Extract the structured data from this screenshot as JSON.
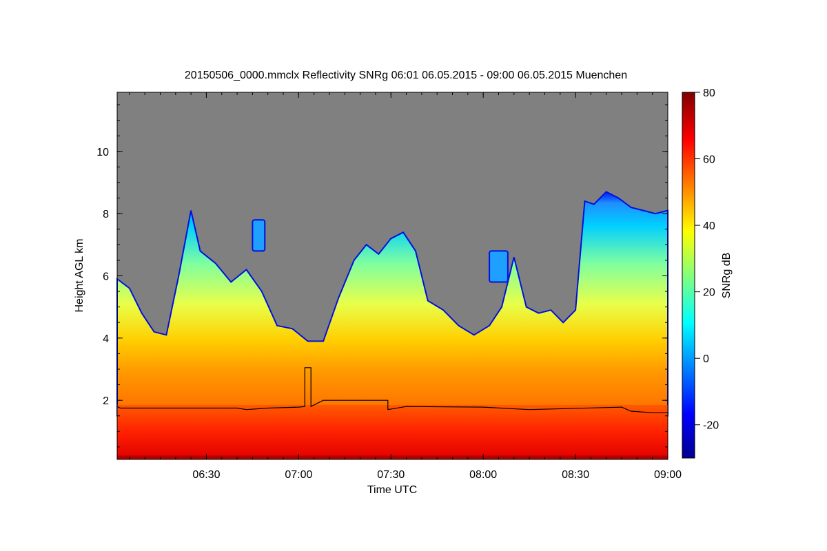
{
  "chart_data": {
    "type": "heatmap",
    "title": "20150506_0000.mmclx Reflectivity SNRg   06:01 06.05.2015 - 09:00 06.05.2015 Muenchen",
    "xlabel": "Time UTC",
    "ylabel": "Height AGL km",
    "colorbar_label": "SNRg dB",
    "x_unit": "UTC",
    "xlim": [
      "06:01",
      "09:00"
    ],
    "ylim": [
      0.1,
      11.9
    ],
    "x_ticks": [
      "06:30",
      "07:00",
      "07:30",
      "08:00",
      "08:30",
      "09:00"
    ],
    "y_ticks": [
      2,
      4,
      6,
      8,
      10
    ],
    "colorbar_range": [
      -30,
      80
    ],
    "colorbar_ticks": [
      -20,
      0,
      20,
      40,
      60,
      80
    ],
    "colormap": "jet",
    "no_data_color": "#808080",
    "cloud_top_km": [
      [
        "06:01",
        5.9
      ],
      [
        "06:05",
        5.6
      ],
      [
        "06:09",
        4.8
      ],
      [
        "06:13",
        4.2
      ],
      [
        "06:17",
        4.1
      ],
      [
        "06:21",
        6.0
      ],
      [
        "06:25",
        8.1
      ],
      [
        "06:28",
        6.8
      ],
      [
        "06:33",
        6.4
      ],
      [
        "06:38",
        5.8
      ],
      [
        "06:43",
        6.2
      ],
      [
        "06:48",
        5.5
      ],
      [
        "06:53",
        4.4
      ],
      [
        "06:58",
        4.3
      ],
      [
        "07:03",
        3.9
      ],
      [
        "07:08",
        3.9
      ],
      [
        "07:13",
        5.3
      ],
      [
        "07:18",
        6.5
      ],
      [
        "07:22",
        7.0
      ],
      [
        "07:26",
        6.7
      ],
      [
        "07:30",
        7.2
      ],
      [
        "07:34",
        7.4
      ],
      [
        "07:38",
        6.8
      ],
      [
        "07:42",
        5.2
      ],
      [
        "07:47",
        4.9
      ],
      [
        "07:52",
        4.4
      ],
      [
        "07:57",
        4.1
      ],
      [
        "08:02",
        4.4
      ],
      [
        "08:06",
        5.0
      ],
      [
        "08:10",
        6.6
      ],
      [
        "08:14",
        5.0
      ],
      [
        "08:18",
        4.8
      ],
      [
        "08:22",
        4.9
      ],
      [
        "08:26",
        4.5
      ],
      [
        "08:30",
        4.9
      ],
      [
        "08:33",
        8.4
      ],
      [
        "08:36",
        8.3
      ],
      [
        "08:40",
        8.7
      ],
      [
        "08:44",
        8.5
      ],
      [
        "08:48",
        8.2
      ],
      [
        "08:52",
        8.1
      ],
      [
        "08:56",
        8.0
      ],
      [
        "09:00",
        8.1
      ]
    ],
    "mid_cloud_layers": [
      {
        "t_start": "06:45",
        "t_end": "06:49",
        "base_km": 6.8,
        "top_km": 7.8
      },
      {
        "t_start": "08:02",
        "t_end": "08:08",
        "base_km": 5.8,
        "top_km": 6.8
      }
    ],
    "boundary_line_km": [
      [
        "06:01",
        1.8
      ],
      [
        "06:02",
        1.75
      ],
      [
        "06:40",
        1.75
      ],
      [
        "06:43",
        1.7
      ],
      [
        "06:50",
        1.75
      ],
      [
        "07:00",
        1.78
      ],
      [
        "07:02",
        1.8
      ],
      [
        "07:02",
        3.05
      ],
      [
        "07:04",
        3.05
      ],
      [
        "07:04",
        1.8
      ],
      [
        "07:06",
        1.9
      ],
      [
        "07:08",
        2.0
      ],
      [
        "07:29",
        2.0
      ],
      [
        "07:29",
        1.7
      ],
      [
        "07:35",
        1.8
      ],
      [
        "08:00",
        1.78
      ],
      [
        "08:15",
        1.7
      ],
      [
        "08:45",
        1.78
      ],
      [
        "08:48",
        1.65
      ],
      [
        "08:55",
        1.6
      ],
      [
        "09:00",
        1.6
      ]
    ]
  }
}
